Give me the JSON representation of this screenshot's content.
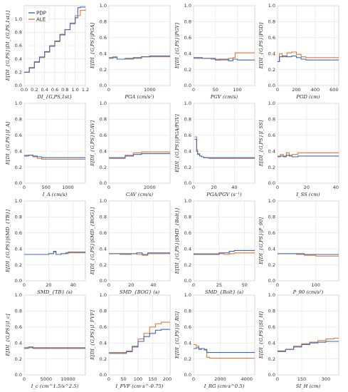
{
  "colors": {
    "pdp": "#3b6ab8",
    "ale": "#e07a3a",
    "overlap": "#9a9a28",
    "grid": "#e3e3e3",
    "frame": "#c8c8c8"
  },
  "legend": {
    "position": "top-left of first panel",
    "entries": [
      "PDP",
      "ALE"
    ]
  },
  "chart_data": [
    {
      "type": "line",
      "xlabel": "DI_{G,PS,1st}",
      "ylabel": "E[DI_{G,PS}|DI_{G,PS,1st}]",
      "xlim": [
        0,
        1.2
      ],
      "ylim": [
        0,
        1.2
      ],
      "xticks": [
        "0.0",
        "0.2",
        "0.4",
        "0.6",
        "0.8",
        "1.0",
        "1.2"
      ],
      "yticks": [
        "0.0",
        "0.2",
        "0.4",
        "0.6",
        "0.8",
        "1.0"
      ],
      "legend": [
        "PDP",
        "ALE"
      ],
      "series": [
        {
          "name": "PDP",
          "x": [
            0.0,
            0.1,
            0.2,
            0.3,
            0.4,
            0.5,
            0.6,
            0.7,
            0.8,
            0.9,
            1.0,
            1.05,
            1.1,
            1.2
          ],
          "y": [
            0.2,
            0.27,
            0.35,
            0.43,
            0.51,
            0.59,
            0.67,
            0.76,
            0.84,
            0.93,
            1.02,
            1.17,
            1.18,
            1.18
          ]
        },
        {
          "name": "ALE",
          "x": [
            0.0,
            0.1,
            0.2,
            0.3,
            0.4,
            0.5,
            0.6,
            0.7,
            0.8,
            0.9,
            1.0,
            1.1,
            1.2
          ],
          "y": [
            0.2,
            0.26,
            0.36,
            0.42,
            0.5,
            0.6,
            0.66,
            0.77,
            0.84,
            0.94,
            1.05,
            1.13,
            1.15
          ]
        }
      ]
    },
    {
      "type": "line",
      "xlabel": "PGA (cm/s²)",
      "ylabel": "E[DI_{G,PS}|PGA]",
      "xlim": [
        0,
        1500
      ],
      "ylim": [
        0,
        1.0
      ],
      "xticks": [
        "0",
        "1000"
      ],
      "yticks": [
        "0.0",
        "0.2",
        "0.4",
        "0.6",
        "0.8",
        "1.0"
      ],
      "series": [
        {
          "name": "PDP",
          "x": [
            0,
            100,
            200,
            400,
            600,
            800,
            1000,
            1500
          ],
          "y": [
            0.35,
            0.35,
            0.33,
            0.34,
            0.35,
            0.36,
            0.37,
            0.37
          ]
        },
        {
          "name": "ALE",
          "x": [
            0,
            100,
            200,
            400,
            600,
            800,
            1000,
            1500
          ],
          "y": [
            0.34,
            0.36,
            0.33,
            0.33,
            0.34,
            0.36,
            0.36,
            0.36
          ]
        }
      ]
    },
    {
      "type": "line",
      "xlabel": "PGV (cm/s)",
      "ylabel": "E[DI_{G,PS}|PGV]",
      "xlim": [
        0,
        140
      ],
      "ylim": [
        0,
        1.0
      ],
      "xticks": [
        "0",
        "50",
        "100"
      ],
      "yticks": [
        "0.0",
        "0.2",
        "0.4",
        "0.6",
        "0.8",
        "1.0"
      ],
      "series": [
        {
          "name": "PDP",
          "x": [
            0,
            20,
            40,
            50,
            60,
            80,
            90,
            100,
            140
          ],
          "y": [
            0.35,
            0.34,
            0.34,
            0.32,
            0.33,
            0.31,
            0.33,
            0.32,
            0.32
          ]
        },
        {
          "name": "ALE",
          "x": [
            0,
            20,
            40,
            50,
            60,
            80,
            90,
            95,
            140
          ],
          "y": [
            0.34,
            0.34,
            0.33,
            0.33,
            0.32,
            0.34,
            0.35,
            0.41,
            0.41
          ]
        }
      ]
    },
    {
      "type": "line",
      "xlabel": "PGD (cm)",
      "ylabel": "E[DI_{G,PS}|PGD]",
      "xlim": [
        0,
        650
      ],
      "ylim": [
        0,
        1.0
      ],
      "xticks": [
        "0",
        "200",
        "400",
        "600"
      ],
      "yticks": [
        "0.0",
        "0.2",
        "0.4",
        "0.6",
        "0.8",
        "1.0"
      ],
      "series": [
        {
          "name": "PDP",
          "x": [
            0,
            20,
            50,
            100,
            150,
            200,
            250,
            300,
            650
          ],
          "y": [
            0.3,
            0.36,
            0.37,
            0.36,
            0.37,
            0.35,
            0.33,
            0.32,
            0.32
          ]
        },
        {
          "name": "ALE",
          "x": [
            0,
            20,
            50,
            100,
            150,
            200,
            250,
            300,
            650
          ],
          "y": [
            0.3,
            0.4,
            0.36,
            0.41,
            0.42,
            0.39,
            0.36,
            0.35,
            0.35
          ]
        }
      ]
    },
    {
      "type": "line",
      "xlabel": "I_A (cm/s)",
      "ylabel": "E[DI_{G,PS}|I_A]",
      "xlim": [
        0,
        1400
      ],
      "ylim": [
        0,
        1.0
      ],
      "xticks": [
        "0",
        "500",
        "1000"
      ],
      "yticks": [
        "0.0",
        "0.2",
        "0.4",
        "0.6",
        "0.8",
        "1.0"
      ],
      "series": [
        {
          "name": "PDP",
          "x": [
            0,
            100,
            200,
            300,
            400,
            600,
            1400
          ],
          "y": [
            0.34,
            0.35,
            0.34,
            0.33,
            0.32,
            0.32,
            0.32
          ]
        },
        {
          "name": "ALE",
          "x": [
            0,
            100,
            200,
            300,
            400,
            600,
            1400
          ],
          "y": [
            0.35,
            0.35,
            0.33,
            0.31,
            0.3,
            0.3,
            0.3
          ]
        }
      ]
    },
    {
      "type": "line",
      "xlabel": "CAV (cm/s)",
      "ylabel": "E[DI_{G,PS}|CAV]",
      "xlim": [
        0,
        3000
      ],
      "ylim": [
        0,
        1.0
      ],
      "xticks": [
        "0",
        "2000"
      ],
      "yticks": [
        "0.0",
        "0.2",
        "0.4",
        "0.6",
        "0.8",
        "1.0"
      ],
      "series": [
        {
          "name": "PDP",
          "x": [
            0,
            500,
            800,
            1200,
            1600,
            3000
          ],
          "y": [
            0.32,
            0.32,
            0.34,
            0.36,
            0.37,
            0.37
          ]
        },
        {
          "name": "ALE",
          "x": [
            0,
            500,
            800,
            1200,
            1600,
            3000
          ],
          "y": [
            0.31,
            0.31,
            0.35,
            0.38,
            0.39,
            0.39
          ]
        }
      ]
    },
    {
      "type": "line",
      "xlabel": "PGA/PGV (s⁻¹)",
      "ylabel": "E[DI_{G,PS}|PGA/PGV]",
      "xlim": [
        0,
        60
      ],
      "ylim": [
        0,
        1.0
      ],
      "xticks": [
        "0",
        "20",
        "40"
      ],
      "yticks": [
        "0.0",
        "0.2",
        "0.4",
        "0.6",
        "0.8",
        "1.0"
      ],
      "series": [
        {
          "name": "PDP",
          "x": [
            1,
            3,
            4,
            6,
            8,
            10,
            15,
            60
          ],
          "y": [
            0.55,
            0.4,
            0.36,
            0.34,
            0.33,
            0.32,
            0.32,
            0.32
          ]
        },
        {
          "name": "ALE",
          "x": [
            1,
            3,
            4,
            6,
            8,
            10,
            15,
            60
          ],
          "y": [
            0.58,
            0.42,
            0.37,
            0.34,
            0.33,
            0.32,
            0.31,
            0.31
          ]
        }
      ]
    },
    {
      "type": "line",
      "xlabel": "I_SS (cm)",
      "ylabel": "E[DI_{G,PS}|I_SS]",
      "xlim": [
        0,
        42
      ],
      "ylim": [
        0,
        1.0
      ],
      "xticks": [
        "0",
        "20",
        "40"
      ],
      "yticks": [
        "0.0",
        "0.2",
        "0.4",
        "0.6",
        "0.8",
        "1.0"
      ],
      "series": [
        {
          "name": "PDP",
          "x": [
            0,
            2,
            4,
            6,
            8,
            10,
            14,
            42
          ],
          "y": [
            0.33,
            0.34,
            0.33,
            0.35,
            0.34,
            0.33,
            0.34,
            0.34
          ]
        },
        {
          "name": "ALE",
          "x": [
            0,
            2,
            4,
            6,
            8,
            10,
            14,
            42
          ],
          "y": [
            0.34,
            0.36,
            0.34,
            0.38,
            0.35,
            0.36,
            0.38,
            0.38
          ]
        }
      ]
    },
    {
      "type": "line",
      "xlabel": "SMD_{TB} (s)",
      "ylabel": "E[DI_{G,PS}|SMD_{TB}]",
      "xlim": [
        0,
        50
      ],
      "ylim": [
        0,
        1.0
      ],
      "xticks": [
        "0",
        "20",
        "40"
      ],
      "yticks": [
        "0.0",
        "0.2",
        "0.4",
        "0.6",
        "0.8",
        "1.0"
      ],
      "series": [
        {
          "name": "PDP",
          "x": [
            0,
            10,
            20,
            24,
            26,
            30,
            34,
            36,
            50
          ],
          "y": [
            0.33,
            0.33,
            0.34,
            0.37,
            0.33,
            0.34,
            0.35,
            0.36,
            0.36
          ]
        },
        {
          "name": "ALE",
          "x": [
            0,
            10,
            20,
            24,
            26,
            30,
            34,
            36,
            50
          ],
          "y": [
            0.33,
            0.33,
            0.34,
            0.36,
            0.33,
            0.34,
            0.34,
            0.35,
            0.35
          ]
        }
      ]
    },
    {
      "type": "line",
      "xlabel": "SMD_{BOG} (s)",
      "ylabel": "E[DI_{G,PS}|SMD_{BOG}]",
      "xlim": [
        0,
        55
      ],
      "ylim": [
        0,
        1.0
      ],
      "xticks": [
        "0",
        "20",
        "40"
      ],
      "yticks": [
        "0.0",
        "0.2",
        "0.4",
        "0.6",
        "0.8",
        "1.0"
      ],
      "series": [
        {
          "name": "PDP",
          "x": [
            0,
            10,
            20,
            25,
            30,
            35,
            55
          ],
          "y": [
            0.34,
            0.34,
            0.34,
            0.35,
            0.33,
            0.35,
            0.35
          ]
        },
        {
          "name": "ALE",
          "x": [
            0,
            10,
            20,
            25,
            30,
            35,
            55
          ],
          "y": [
            0.34,
            0.33,
            0.34,
            0.33,
            0.32,
            0.34,
            0.34
          ]
        }
      ]
    },
    {
      "type": "line",
      "xlabel": "SMD_{Bolt} (s)",
      "ylabel": "E[DI_{G,PS}|SMD_{Bolt}]",
      "xlim": [
        0,
        60
      ],
      "ylim": [
        0,
        1.0
      ],
      "xticks": [
        "0",
        "25",
        "50"
      ],
      "yticks": [
        "0.0",
        "0.2",
        "0.4",
        "0.6",
        "0.8",
        "1.0"
      ],
      "series": [
        {
          "name": "PDP",
          "x": [
            0,
            15,
            20,
            25,
            30,
            35,
            40,
            60
          ],
          "y": [
            0.33,
            0.33,
            0.33,
            0.35,
            0.35,
            0.37,
            0.38,
            0.38
          ]
        },
        {
          "name": "ALE",
          "x": [
            0,
            15,
            20,
            25,
            30,
            35,
            40,
            60
          ],
          "y": [
            0.34,
            0.34,
            0.34,
            0.34,
            0.33,
            0.34,
            0.35,
            0.35
          ]
        }
      ]
    },
    {
      "type": "line",
      "xlabel": "P_90 (cm/s²)",
      "ylabel": "E[DI_{G,PS}|P_90]",
      "xlim": [
        0,
        160
      ],
      "ylim": [
        0,
        1.0
      ],
      "xticks": [
        "0",
        "100"
      ],
      "yticks": [
        "0.0",
        "0.2",
        "0.4",
        "0.6",
        "0.8",
        "1.0"
      ],
      "series": [
        {
          "name": "PDP",
          "x": [
            0,
            30,
            50,
            70,
            100,
            160
          ],
          "y": [
            0.34,
            0.34,
            0.34,
            0.33,
            0.33,
            0.33
          ]
        },
        {
          "name": "ALE",
          "x": [
            0,
            30,
            50,
            70,
            100,
            160
          ],
          "y": [
            0.34,
            0.34,
            0.33,
            0.32,
            0.31,
            0.31
          ]
        }
      ]
    },
    {
      "type": "line",
      "xlabel": "I_c (cm^1.5/s^2.5)",
      "ylabel": "E[DI_{G,PS}|I_c]",
      "xlim": [
        0,
        14000
      ],
      "ylim": [
        0,
        1.0
      ],
      "xticks": [
        "0",
        "5000",
        "10000"
      ],
      "yticks": [
        "0.0",
        "0.2",
        "0.4",
        "0.6",
        "0.8",
        "1.0"
      ],
      "series": [
        {
          "name": "PDP",
          "x": [
            0,
            1000,
            2000,
            3000,
            5000,
            14000
          ],
          "y": [
            0.34,
            0.35,
            0.34,
            0.34,
            0.34,
            0.34
          ]
        },
        {
          "name": "ALE",
          "x": [
            0,
            1000,
            2000,
            3000,
            5000,
            14000
          ],
          "y": [
            0.33,
            0.34,
            0.33,
            0.33,
            0.33,
            0.33
          ]
        }
      ]
    },
    {
      "type": "line",
      "xlabel": "I_FVF (cm·s^-0.75)",
      "ylabel": "E[DI_{G,PS}|I_FVF]",
      "xlim": [
        0,
        210
      ],
      "ylim": [
        0,
        1.0
      ],
      "xticks": [
        "0",
        "50",
        "100",
        "150",
        "200"
      ],
      "yticks": [
        "0.0",
        "0.2",
        "0.4",
        "0.6",
        "0.8",
        "1.0"
      ],
      "series": [
        {
          "name": "PDP",
          "x": [
            0,
            40,
            60,
            80,
            100,
            120,
            140,
            160,
            180,
            210
          ],
          "y": [
            0.27,
            0.27,
            0.29,
            0.35,
            0.42,
            0.48,
            0.52,
            0.56,
            0.57,
            0.57
          ]
        },
        {
          "name": "ALE",
          "x": [
            0,
            40,
            60,
            80,
            100,
            120,
            140,
            160,
            180,
            210
          ],
          "y": [
            0.28,
            0.28,
            0.3,
            0.36,
            0.45,
            0.52,
            0.6,
            0.64,
            0.66,
            0.66
          ]
        }
      ]
    },
    {
      "type": "line",
      "xlabel": "I_RG (cm·s^0.5)",
      "ylabel": "E[DI_{G,PS}|I_RG]",
      "xlim": [
        0,
        4600
      ],
      "ylim": [
        0,
        1.0
      ],
      "xticks": [
        "0",
        "2000",
        "4000"
      ],
      "yticks": [
        "0.0",
        "0.2",
        "0.4",
        "0.6",
        "0.8",
        "1.0"
      ],
      "series": [
        {
          "name": "PDP",
          "x": [
            0,
            200,
            400,
            600,
            800,
            1000,
            1200,
            4600
          ],
          "y": [
            0.33,
            0.34,
            0.32,
            0.33,
            0.32,
            0.28,
            0.28,
            0.28
          ]
        },
        {
          "name": "ALE",
          "x": [
            0,
            200,
            400,
            600,
            800,
            1000,
            1200,
            4600
          ],
          "y": [
            0.38,
            0.36,
            0.33,
            0.33,
            0.31,
            0.22,
            0.21,
            0.21
          ]
        }
      ]
    },
    {
      "type": "line",
      "xlabel": "SI_H (cm)",
      "ylabel": "E[DI_{G,PS}|SI_H]",
      "xlim": [
        0,
        380
      ],
      "ylim": [
        0,
        1.0
      ],
      "xticks": [
        "0",
        "150",
        "300"
      ],
      "yticks": [
        "0.0",
        "0.2",
        "0.4",
        "0.6",
        "0.8",
        "1.0"
      ],
      "series": [
        {
          "name": "PDP",
          "x": [
            0,
            50,
            100,
            150,
            200,
            250,
            300,
            350,
            380
          ],
          "y": [
            0.3,
            0.32,
            0.35,
            0.38,
            0.4,
            0.41,
            0.42,
            0.42,
            0.42
          ]
        },
        {
          "name": "ALE",
          "x": [
            0,
            50,
            100,
            150,
            200,
            250,
            300,
            350,
            380
          ],
          "y": [
            0.29,
            0.32,
            0.36,
            0.39,
            0.41,
            0.43,
            0.45,
            0.46,
            0.46
          ]
        }
      ]
    }
  ]
}
